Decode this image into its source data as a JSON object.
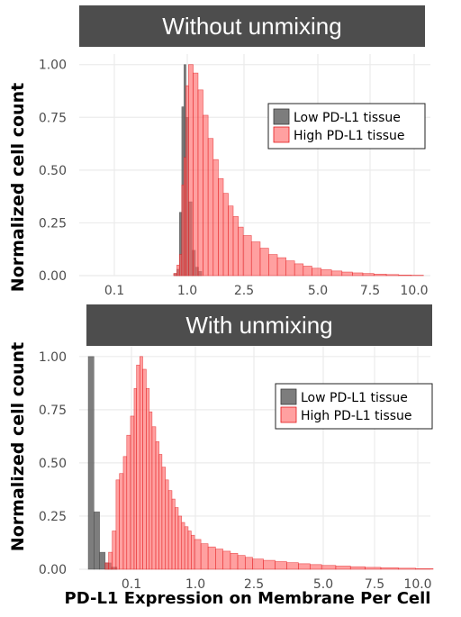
{
  "figure": {
    "x_axis_label": "PD-L1 Expression on Membrane Per Cell",
    "y_axis_label": "Normalized cell count"
  },
  "colors": {
    "low": "#666666",
    "high": "#ff6666",
    "high_edge": "#e31a1c",
    "title_bg": "#4d4d4d",
    "grid": "#ebebeb"
  },
  "chart_data": [
    {
      "type": "bar",
      "title": "Without unmixing",
      "xlabel": "PD-L1 Expression on Membrane Per Cell",
      "ylabel": "Normalized cell count",
      "x_scale": "log",
      "x_ticks": [
        0.1,
        1.0,
        2.5,
        5.0,
        7.5,
        10.0
      ],
      "x_tick_labels": [
        "0.1",
        "1.0",
        "2.5",
        "5.0",
        "7.5",
        "10.0"
      ],
      "y_ticks": [
        0,
        0.25,
        0.5,
        0.75,
        1.0
      ],
      "y_tick_labels": [
        "0.00",
        "0.25",
        "0.50",
        "0.75",
        "1.00"
      ],
      "ylim": [
        0,
        1.05
      ],
      "grid": true,
      "legend_position": "right",
      "series": [
        {
          "name": "Low PD-L1 tissue",
          "color": "#666666",
          "bins": [
            {
              "x": 0.6,
              "y": 0.0
            },
            {
              "x": 0.66,
              "y": 0.01
            },
            {
              "x": 0.72,
              "y": 0.03
            },
            {
              "x": 0.78,
              "y": 0.3
            },
            {
              "x": 0.84,
              "y": 0.8
            },
            {
              "x": 0.9,
              "y": 1.0
            },
            {
              "x": 0.96,
              "y": 0.75
            },
            {
              "x": 1.02,
              "y": 0.35
            },
            {
              "x": 1.08,
              "y": 0.12
            },
            {
              "x": 1.14,
              "y": 0.04
            },
            {
              "x": 1.2,
              "y": 0.02
            }
          ]
        },
        {
          "name": "High PD-L1 tissue",
          "color": "#ff6666",
          "bins": [
            {
              "x": 0.5,
              "y": 0.0
            },
            {
              "x": 0.65,
              "y": 0.01
            },
            {
              "x": 0.72,
              "y": 0.05
            },
            {
              "x": 0.78,
              "y": 0.1
            },
            {
              "x": 0.84,
              "y": 0.43
            },
            {
              "x": 0.9,
              "y": 0.56
            },
            {
              "x": 0.96,
              "y": 0.9
            },
            {
              "x": 1.02,
              "y": 1.0
            },
            {
              "x": 1.1,
              "y": 0.96
            },
            {
              "x": 1.19,
              "y": 0.88
            },
            {
              "x": 1.29,
              "y": 0.76
            },
            {
              "x": 1.4,
              "y": 0.65
            },
            {
              "x": 1.52,
              "y": 0.55
            },
            {
              "x": 1.65,
              "y": 0.46
            },
            {
              "x": 1.79,
              "y": 0.39
            },
            {
              "x": 1.94,
              "y": 0.33
            },
            {
              "x": 2.1,
              "y": 0.28
            },
            {
              "x": 2.28,
              "y": 0.23
            },
            {
              "x": 2.47,
              "y": 0.19
            },
            {
              "x": 2.68,
              "y": 0.16
            },
            {
              "x": 2.91,
              "y": 0.13
            },
            {
              "x": 3.15,
              "y": 0.1
            },
            {
              "x": 3.42,
              "y": 0.085
            },
            {
              "x": 3.71,
              "y": 0.07
            },
            {
              "x": 4.02,
              "y": 0.056
            },
            {
              "x": 4.36,
              "y": 0.045
            },
            {
              "x": 4.73,
              "y": 0.035
            },
            {
              "x": 5.13,
              "y": 0.028
            },
            {
              "x": 5.56,
              "y": 0.022
            },
            {
              "x": 6.03,
              "y": 0.017
            },
            {
              "x": 6.54,
              "y": 0.013
            },
            {
              "x": 7.09,
              "y": 0.01
            },
            {
              "x": 7.69,
              "y": 0.007
            },
            {
              "x": 8.34,
              "y": 0.005
            },
            {
              "x": 9.04,
              "y": 0.003
            },
            {
              "x": 9.8,
              "y": 0.002
            }
          ]
        }
      ]
    },
    {
      "type": "bar",
      "title": "With unmixing",
      "xlabel": "PD-L1 Expression on Membrane Per Cell",
      "ylabel": "Normalized cell count",
      "x_scale": "log",
      "x_ticks": [
        0.1,
        1.0,
        2.5,
        5.0,
        7.5,
        10.0
      ],
      "x_tick_labels": [
        "0.1",
        "1.0",
        "2.5",
        "5.0",
        "7.5",
        "10.0"
      ],
      "y_ticks": [
        0,
        0.25,
        0.5,
        0.75,
        1.0
      ],
      "y_tick_labels": [
        "0.00",
        "0.25",
        "0.50",
        "0.75",
        "1.00"
      ],
      "ylim": [
        0,
        1.05
      ],
      "grid": true,
      "legend_position": "right",
      "series": [
        {
          "name": "Low PD-L1 tissue",
          "color": "#666666",
          "bins": [
            {
              "x": 0.025,
              "y": 1.0
            },
            {
              "x": 0.03,
              "y": 0.27
            },
            {
              "x": 0.036,
              "y": 0.08
            },
            {
              "x": 0.043,
              "y": 0.03
            },
            {
              "x": 0.052,
              "y": 0.01
            }
          ]
        },
        {
          "name": "High PD-L1 tissue",
          "color": "#ff6666",
          "bins": [
            {
              "x": 0.043,
              "y": 0.03
            },
            {
              "x": 0.048,
              "y": 0.08
            },
            {
              "x": 0.054,
              "y": 0.18
            },
            {
              "x": 0.061,
              "y": 0.42
            },
            {
              "x": 0.068,
              "y": 0.45
            },
            {
              "x": 0.077,
              "y": 0.53
            },
            {
              "x": 0.086,
              "y": 0.63
            },
            {
              "x": 0.097,
              "y": 0.72
            },
            {
              "x": 0.11,
              "y": 0.85
            },
            {
              "x": 0.12,
              "y": 0.96
            },
            {
              "x": 0.135,
              "y": 1.0
            },
            {
              "x": 0.15,
              "y": 0.94
            },
            {
              "x": 0.17,
              "y": 0.85
            },
            {
              "x": 0.19,
              "y": 0.74
            },
            {
              "x": 0.21,
              "y": 0.67
            },
            {
              "x": 0.24,
              "y": 0.6
            },
            {
              "x": 0.27,
              "y": 0.54
            },
            {
              "x": 0.3,
              "y": 0.48
            },
            {
              "x": 0.34,
              "y": 0.42
            },
            {
              "x": 0.38,
              "y": 0.37
            },
            {
              "x": 0.43,
              "y": 0.33
            },
            {
              "x": 0.48,
              "y": 0.29
            },
            {
              "x": 0.54,
              "y": 0.25
            },
            {
              "x": 0.61,
              "y": 0.22
            },
            {
              "x": 0.68,
              "y": 0.2
            },
            {
              "x": 0.77,
              "y": 0.18
            },
            {
              "x": 0.86,
              "y": 0.16
            },
            {
              "x": 0.97,
              "y": 0.14
            },
            {
              "x": 1.09,
              "y": 0.12
            },
            {
              "x": 1.22,
              "y": 0.105
            },
            {
              "x": 1.37,
              "y": 0.095
            },
            {
              "x": 1.54,
              "y": 0.085
            },
            {
              "x": 1.73,
              "y": 0.075
            },
            {
              "x": 1.94,
              "y": 0.065
            },
            {
              "x": 2.18,
              "y": 0.056
            },
            {
              "x": 2.45,
              "y": 0.048
            },
            {
              "x": 2.75,
              "y": 0.042
            },
            {
              "x": 3.09,
              "y": 0.036
            },
            {
              "x": 3.47,
              "y": 0.031
            },
            {
              "x": 3.9,
              "y": 0.026
            },
            {
              "x": 4.38,
              "y": 0.022
            },
            {
              "x": 4.92,
              "y": 0.018
            },
            {
              "x": 5.52,
              "y": 0.015
            },
            {
              "x": 6.2,
              "y": 0.012
            },
            {
              "x": 6.96,
              "y": 0.009
            },
            {
              "x": 7.82,
              "y": 0.007
            },
            {
              "x": 8.78,
              "y": 0.005
            },
            {
              "x": 9.86,
              "y": 0.003
            }
          ]
        }
      ]
    }
  ]
}
